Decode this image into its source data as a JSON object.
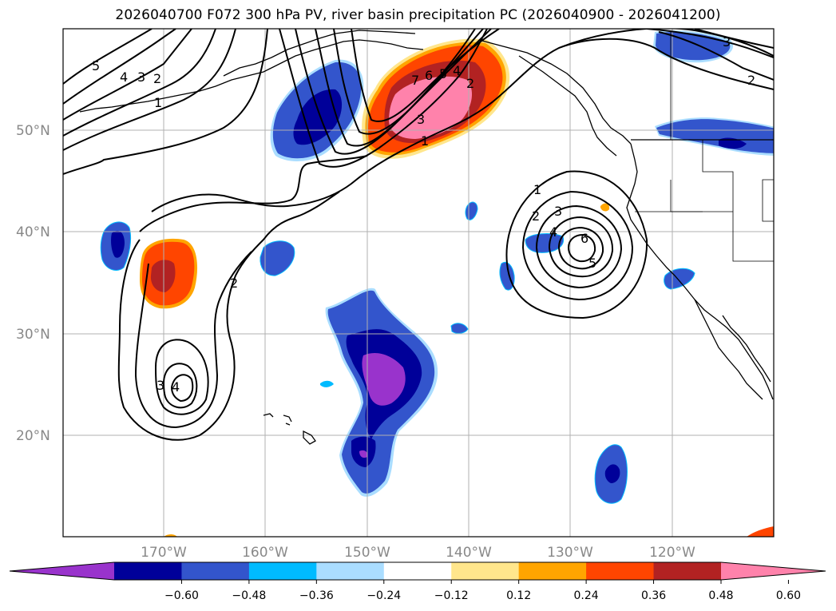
{
  "title": "2026040700 F072 300 hPa PV, river basin precipitation PC (2026040900 - 2026041200)",
  "lat_labels": [
    "50°N",
    "40°N",
    "30°N",
    "20°N"
  ],
  "lon_labels": [
    "170°W",
    "160°W",
    "150°W",
    "140°W",
    "130°W",
    "120°W"
  ],
  "colorbar": {
    "colors": [
      "#9933cc",
      "#000099",
      "#3355cc",
      "#00bbff",
      "#aaddff",
      "#ffffff",
      "#ffe68c",
      "#ffa500",
      "#ff4500",
      "#b22222",
      "#ff82ab"
    ],
    "labels": [
      "−0.60",
      "−0.48",
      "−0.36",
      "−0.24",
      "−0.12",
      "0.12",
      "0.24",
      "0.36",
      "0.48",
      "0.60"
    ]
  },
  "contour_labels": [
    "5",
    "4",
    "3",
    "2",
    "1",
    "7",
    "6",
    "5",
    "4",
    "2",
    "3",
    "1",
    "1",
    "2",
    "3",
    "4",
    "6",
    "5",
    "2",
    "3",
    "4",
    "3",
    "2"
  ]
}
